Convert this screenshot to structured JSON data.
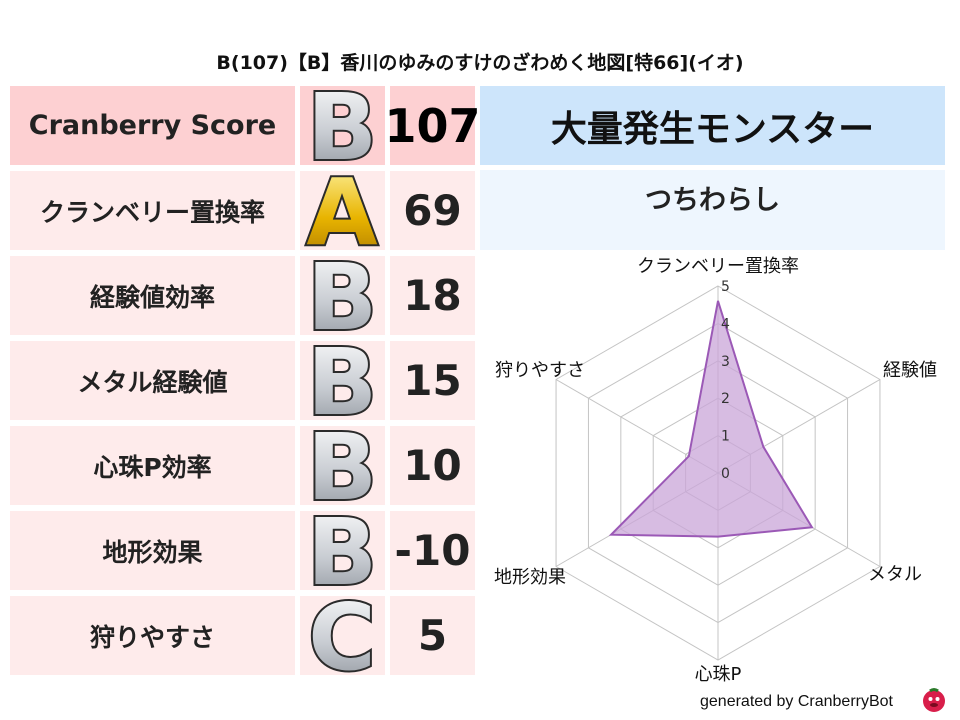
{
  "title": "B(107)【B】香川のゆみのすけのざわめく地図[特66](イオ)",
  "rows": [
    {
      "label": "Cranberry Score",
      "grade": "B",
      "value": "107"
    },
    {
      "label": "クランベリー置換率",
      "grade": "A",
      "value": "69"
    },
    {
      "label": "経験値効率",
      "grade": "B",
      "value": "18"
    },
    {
      "label": "メタル経験値",
      "grade": "B",
      "value": "15"
    },
    {
      "label": "心珠P効率",
      "grade": "B",
      "value": "10"
    },
    {
      "label": "地形効果",
      "grade": "B",
      "value": "-10"
    },
    {
      "label": "狩りやすさ",
      "grade": "C",
      "value": "5"
    }
  ],
  "monster_header": "大量発生モンスター",
  "monster_name": "つちわらし",
  "colors": {
    "header_bg": "#fdd0d2",
    "row_bg": "#feebeb",
    "monster_header_bg": "#cde5fb",
    "monster_bg": "#eef6fe",
    "radar_line": "#9b59b6",
    "radar_fill": "#c9a6d8"
  },
  "chart_data": {
    "type": "radar",
    "axes": [
      "クランベリー置換率",
      "経験値",
      "メタル",
      "心珠P",
      "地形効果",
      "狩りやすさ"
    ],
    "values": [
      4.6,
      1.4,
      2.9,
      1.7,
      3.3,
      0.9
    ],
    "range": [
      0,
      5
    ],
    "ticks": [
      "0",
      "1",
      "2",
      "3",
      "4",
      "5"
    ],
    "grid": true
  },
  "footer": "generated by CranberryBot"
}
